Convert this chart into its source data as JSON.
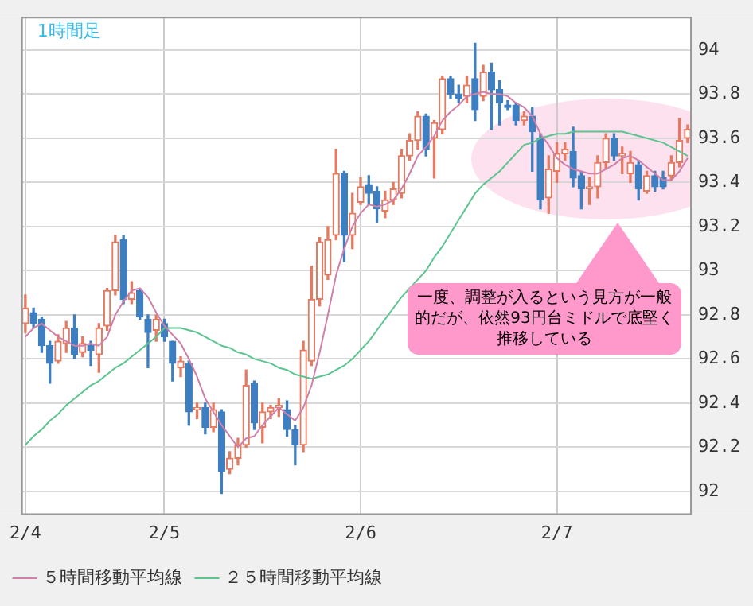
{
  "chart_data": {
    "type": "candlestick",
    "title": "1時間足",
    "categories": [
      "2/4",
      null,
      null,
      null,
      null,
      null,
      null,
      null,
      null,
      null,
      null,
      null,
      null,
      null,
      null,
      null,
      null,
      "2/5",
      null,
      null,
      null,
      null,
      null,
      null,
      null,
      null,
      null,
      null,
      null,
      null,
      null,
      null,
      null,
      null,
      null,
      null,
      null,
      null,
      null,
      null,
      null,
      "2/6",
      null,
      null,
      null,
      null,
      null,
      null,
      null,
      null,
      null,
      null,
      null,
      null,
      null,
      null,
      null,
      null,
      null,
      null,
      null,
      null,
      null,
      null,
      null,
      "2/7",
      null,
      null,
      null,
      null,
      null,
      null,
      null,
      null,
      null,
      null,
      null,
      null,
      null,
      null,
      null,
      null
    ],
    "ohlc": [
      [
        92.76,
        92.89,
        92.72,
        92.83
      ],
      [
        92.81,
        92.83,
        92.74,
        92.76
      ],
      [
        92.78,
        92.79,
        92.63,
        92.66
      ],
      [
        92.66,
        92.68,
        92.49,
        92.58
      ],
      [
        92.59,
        92.71,
        92.58,
        92.68
      ],
      [
        92.67,
        92.77,
        92.63,
        92.74
      ],
      [
        92.74,
        92.8,
        92.6,
        92.62
      ],
      [
        92.63,
        92.7,
        92.61,
        92.67
      ],
      [
        92.66,
        92.68,
        92.57,
        92.64
      ],
      [
        92.62,
        92.76,
        92.54,
        92.74
      ],
      [
        92.75,
        92.92,
        92.73,
        92.91
      ],
      [
        92.91,
        93.16,
        92.89,
        93.13
      ],
      [
        93.14,
        93.16,
        92.85,
        92.87
      ],
      [
        92.87,
        92.95,
        92.85,
        92.9
      ],
      [
        92.91,
        92.92,
        92.78,
        92.79
      ],
      [
        92.78,
        92.8,
        92.56,
        92.72
      ],
      [
        92.73,
        92.8,
        92.68,
        92.78
      ],
      [
        92.76,
        92.78,
        92.68,
        92.7
      ],
      [
        92.68,
        92.68,
        92.5,
        92.58
      ],
      [
        92.56,
        92.61,
        92.52,
        92.59
      ],
      [
        92.58,
        92.59,
        92.3,
        92.36
      ],
      [
        92.37,
        92.4,
        92.33,
        92.38
      ],
      [
        92.38,
        92.4,
        92.26,
        92.29
      ],
      [
        92.29,
        92.4,
        92.27,
        92.37
      ],
      [
        92.36,
        92.37,
        91.99,
        92.09
      ],
      [
        92.1,
        92.18,
        92.08,
        92.15
      ],
      [
        92.15,
        92.24,
        92.12,
        92.21
      ],
      [
        92.21,
        92.55,
        92.2,
        92.48
      ],
      [
        92.49,
        92.5,
        92.28,
        92.31
      ],
      [
        92.29,
        92.4,
        92.22,
        92.36
      ],
      [
        92.36,
        92.39,
        92.33,
        92.38
      ],
      [
        92.38,
        92.42,
        92.34,
        92.39
      ],
      [
        92.37,
        92.41,
        92.25,
        92.28
      ],
      [
        92.28,
        92.3,
        92.12,
        92.21
      ],
      [
        92.21,
        92.68,
        92.18,
        92.64
      ],
      [
        92.59,
        93.02,
        92.57,
        92.87
      ],
      [
        92.87,
        93.15,
        92.84,
        93.13
      ],
      [
        92.98,
        93.2,
        92.96,
        93.14
      ],
      [
        93.16,
        93.55,
        93.14,
        93.44
      ],
      [
        93.44,
        93.45,
        93.04,
        93.16
      ],
      [
        93.16,
        93.35,
        93.1,
        93.26
      ],
      [
        93.31,
        93.42,
        93.3,
        93.38
      ],
      [
        93.39,
        93.43,
        93.3,
        93.35
      ],
      [
        93.36,
        93.38,
        93.22,
        93.28
      ],
      [
        93.27,
        93.36,
        93.24,
        93.32
      ],
      [
        93.32,
        93.4,
        93.3,
        93.37
      ],
      [
        93.35,
        93.55,
        93.33,
        93.52
      ],
      [
        93.52,
        93.62,
        93.5,
        93.59
      ],
      [
        93.59,
        93.72,
        93.55,
        93.7
      ],
      [
        93.7,
        93.71,
        93.52,
        93.55
      ],
      [
        93.6,
        93.68,
        93.42,
        93.67
      ],
      [
        93.64,
        93.88,
        93.62,
        93.87
      ],
      [
        93.87,
        93.88,
        93.78,
        93.8
      ],
      [
        93.8,
        93.84,
        93.76,
        93.78
      ],
      [
        93.79,
        93.88,
        93.76,
        93.84
      ],
      [
        93.87,
        94.03,
        93.68,
        93.73
      ],
      [
        93.79,
        93.93,
        93.77,
        93.9
      ],
      [
        93.9,
        93.94,
        93.64,
        93.82
      ],
      [
        93.82,
        93.86,
        93.66,
        93.76
      ],
      [
        93.75,
        93.77,
        93.73,
        93.74
      ],
      [
        93.75,
        93.76,
        93.66,
        93.68
      ],
      [
        93.68,
        93.72,
        93.66,
        93.7
      ],
      [
        93.7,
        93.74,
        93.45,
        93.63
      ],
      [
        93.6,
        93.62,
        93.28,
        93.32
      ],
      [
        93.33,
        93.52,
        93.26,
        93.46
      ],
      [
        93.45,
        93.58,
        93.4,
        93.53
      ],
      [
        93.53,
        93.58,
        93.5,
        93.55
      ],
      [
        93.54,
        93.65,
        93.38,
        93.42
      ],
      [
        93.43,
        93.45,
        93.28,
        93.37
      ],
      [
        93.37,
        93.42,
        93.3,
        93.38
      ],
      [
        93.38,
        93.52,
        93.33,
        93.49
      ],
      [
        93.49,
        93.62,
        93.46,
        93.6
      ],
      [
        93.6,
        93.62,
        93.5,
        93.52
      ],
      [
        93.52,
        93.56,
        93.44,
        93.53
      ],
      [
        93.44,
        93.54,
        93.4,
        93.49
      ],
      [
        93.48,
        93.5,
        93.32,
        93.37
      ],
      [
        93.36,
        93.45,
        93.35,
        93.43
      ],
      [
        93.43,
        93.45,
        93.36,
        93.38
      ],
      [
        93.42,
        93.45,
        93.37,
        93.38
      ],
      [
        93.43,
        93.52,
        93.41,
        93.49
      ],
      [
        93.49,
        93.69,
        93.47,
        93.59
      ],
      [
        93.6,
        93.66,
        93.58,
        93.64
      ]
    ],
    "colors": [
      "#e57a60",
      "#3d7fc1",
      "#3d7fc1",
      "#3d7fc1",
      "#e57a60",
      "#e57a60",
      "#3d7fc1",
      "#e57a60",
      "#3d7fc1",
      "#e57a60",
      "#e57a60",
      "#e57a60",
      "#3d7fc1",
      "#e57a60",
      "#3d7fc1",
      "#3d7fc1",
      "#e57a60",
      "#3d7fc1",
      "#3d7fc1",
      "#e57a60",
      "#3d7fc1",
      "#e57a60",
      "#3d7fc1",
      "#e57a60",
      "#3d7fc1",
      "#e57a60",
      "#e57a60",
      "#e57a60",
      "#3d7fc1",
      "#e57a60",
      "#e57a60",
      "#e57a60",
      "#3d7fc1",
      "#3d7fc1",
      "#e57a60",
      "#e57a60",
      "#e57a60",
      "#e57a60",
      "#e57a60",
      "#3d7fc1",
      "#e57a60",
      "#e57a60",
      "#3d7fc1",
      "#3d7fc1",
      "#e57a60",
      "#e57a60",
      "#e57a60",
      "#e57a60",
      "#e57a60",
      "#3d7fc1",
      "#e57a60",
      "#e57a60",
      "#3d7fc1",
      "#3d7fc1",
      "#e57a60",
      "#3d7fc1",
      "#e57a60",
      "#3d7fc1",
      "#3d7fc1",
      "#3d7fc1",
      "#3d7fc1",
      "#e57a60",
      "#3d7fc1",
      "#3d7fc1",
      "#e57a60",
      "#e57a60",
      "#e57a60",
      "#3d7fc1",
      "#3d7fc1",
      "#e57a60",
      "#e57a60",
      "#e57a60",
      "#3d7fc1",
      "#e57a60",
      "#e57a60",
      "#3d7fc1",
      "#e57a60",
      "#3d7fc1",
      "#3d7fc1",
      "#e57a60",
      "#e57a60",
      "#e57a60"
    ],
    "series": [
      {
        "name": "５時間移動平均線",
        "type": "line",
        "color": "#d080a8",
        "values": [
          92.7,
          92.74,
          92.76,
          92.73,
          92.7,
          92.68,
          92.66,
          92.66,
          92.67,
          92.66,
          92.7,
          92.8,
          92.86,
          92.91,
          92.92,
          92.88,
          92.81,
          92.75,
          92.71,
          92.67,
          92.6,
          92.52,
          92.42,
          92.36,
          92.3,
          92.25,
          92.2,
          92.24,
          92.25,
          92.3,
          92.34,
          92.38,
          92.35,
          92.32,
          92.38,
          92.48,
          92.63,
          92.8,
          92.98,
          93.1,
          93.2,
          93.26,
          93.3,
          93.29,
          93.3,
          93.32,
          93.37,
          93.44,
          93.52,
          93.56,
          93.61,
          93.68,
          93.72,
          93.75,
          93.79,
          93.8,
          93.81,
          93.8,
          93.8,
          93.79,
          93.76,
          93.74,
          93.7,
          93.62,
          93.57,
          93.51,
          93.48,
          93.46,
          93.45,
          93.44,
          93.44,
          93.46,
          93.48,
          93.51,
          93.52,
          93.5,
          93.47,
          93.44,
          93.41,
          93.41,
          93.45,
          93.51
        ]
      },
      {
        "name": "２５時間移動平均線",
        "type": "line",
        "color": "#5cc48f",
        "values": [
          92.21,
          92.25,
          92.28,
          92.32,
          92.35,
          92.39,
          92.42,
          92.45,
          92.48,
          92.5,
          92.53,
          92.56,
          92.58,
          92.61,
          92.64,
          92.67,
          92.7,
          92.74,
          92.74,
          92.74,
          92.73,
          92.72,
          92.7,
          92.68,
          92.66,
          92.65,
          92.63,
          92.62,
          92.6,
          92.59,
          92.58,
          92.56,
          92.55,
          92.53,
          92.52,
          92.51,
          92.52,
          92.53,
          92.55,
          92.57,
          92.6,
          92.64,
          92.68,
          92.73,
          92.78,
          92.83,
          92.88,
          92.92,
          92.96,
          93.0,
          93.06,
          93.11,
          93.17,
          93.23,
          93.29,
          93.35,
          93.39,
          93.42,
          93.45,
          93.49,
          93.53,
          93.57,
          93.58,
          93.6,
          93.61,
          93.62,
          93.62,
          93.63,
          93.63,
          93.63,
          93.63,
          93.63,
          93.63,
          93.63,
          93.62,
          93.61,
          93.6,
          93.59,
          93.58,
          93.56,
          93.54,
          93.52
        ]
      }
    ],
    "ylim": [
      91.9,
      94.15
    ],
    "yticks": [
      92,
      92.2,
      92.4,
      92.6,
      92.8,
      93,
      93.2,
      93.4,
      93.6,
      93.8,
      94
    ],
    "grid": true,
    "legend": "bottom",
    "marker": "none",
    "annotations": [
      "一度、調整が入るという見方が一般的だが、依然93円台ミドルで底堅く推移している"
    ]
  }
}
